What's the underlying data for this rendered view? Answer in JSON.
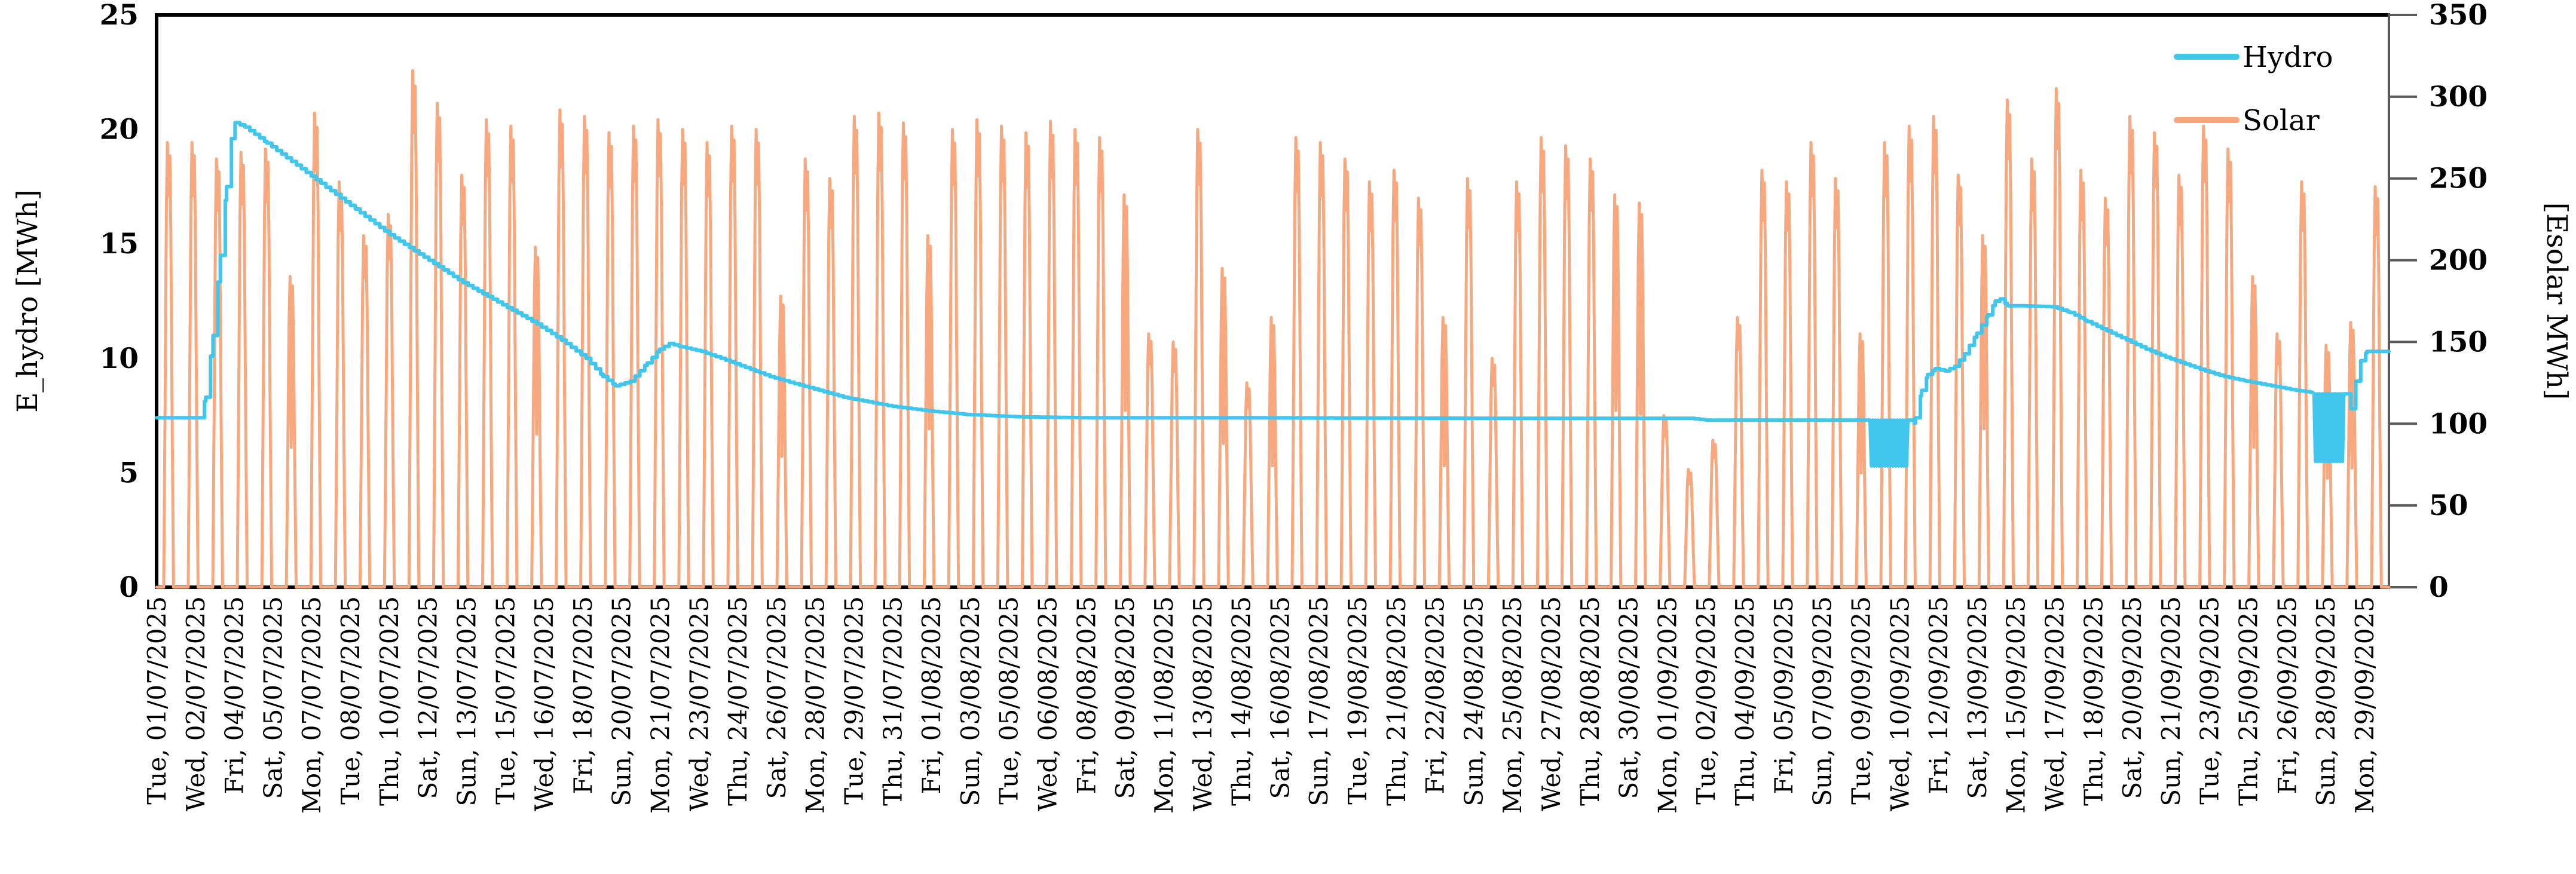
{
  "chart_data": {
    "type": "line",
    "title": "",
    "grid": false,
    "background_color": "#ffffff",
    "axis_color": "#000000",
    "right_axis_color": "#595959",
    "legend_position": "top-right-inside",
    "legend": [
      {
        "name": "Hydro",
        "color": "#41C6EE"
      },
      {
        "name": "Solar",
        "color": "#F8A87E"
      }
    ],
    "y_left": {
      "label": "E_hydro [MWh]",
      "min": 0,
      "max": 25,
      "ticks": [
        0,
        5,
        10,
        15,
        20,
        25
      ]
    },
    "y_right": {
      "label": "[Esolar MWh]",
      "min": 0,
      "max": 350,
      "ticks": [
        0,
        50,
        100,
        150,
        200,
        250,
        300,
        350
      ]
    },
    "x_axis": {
      "span_days": 91,
      "first_day": "Tue, 01/07/2025",
      "last_day": "Mon, 29/09/2025",
      "tick_labels": [
        "Tue, 01/07/2025",
        "Wed, 02/07/2025",
        "Fri, 04/07/2025",
        "Sat, 05/07/2025",
        "Mon, 07/07/2025",
        "Tue, 08/07/2025",
        "Thu, 10/07/2025",
        "Sat, 12/07/2025",
        "Sun, 13/07/2025",
        "Tue, 15/07/2025",
        "Wed, 16/07/2025",
        "Fri, 18/07/2025",
        "Sun, 20/07/2025",
        "Mon, 21/07/2025",
        "Wed, 23/07/2025",
        "Thu, 24/07/2025",
        "Sat, 26/07/2025",
        "Mon, 28/07/2025",
        "Tue, 29/07/2025",
        "Thu, 31/07/2025",
        "Fri, 01/08/2025",
        "Sun, 03/08/2025",
        "Tue, 05/08/2025",
        "Wed, 06/08/2025",
        "Fri, 08/08/2025",
        "Sat, 09/08/2025",
        "Mon, 11/08/2025",
        "Wed, 13/08/2025",
        "Thu, 14/08/2025",
        "Sat, 16/08/2025",
        "Sun, 17/08/2025",
        "Tue, 19/08/2025",
        "Thu, 21/08/2025",
        "Fri, 22/08/2025",
        "Sun, 24/08/2025",
        "Mon, 25/08/2025",
        "Wed, 27/08/2025",
        "Thu, 28/08/2025",
        "Sat, 30/08/2025",
        "Mon, 01/09/2025",
        "Tue, 02/09/2025",
        "Thu, 04/09/2025",
        "Fri, 05/09/2025",
        "Sun, 07/09/2025",
        "Tue, 09/09/2025",
        "Wed, 10/09/2025",
        "Fri, 12/09/2025",
        "Sat, 13/09/2025",
        "Mon, 15/09/2025",
        "Wed, 17/09/2025",
        "Thu, 18/09/2025",
        "Sat, 20/09/2025",
        "Sun, 21/09/2025",
        "Tue, 23/09/2025",
        "Thu, 25/09/2025",
        "Fri, 26/09/2025",
        "Sun, 28/09/2025",
        "Mon, 29/09/2025"
      ]
    },
    "series": [
      {
        "name": "Hydro",
        "axis": "left",
        "color": "#41C6EE",
        "style": "stepped-line",
        "segments": [
          {
            "type": "line",
            "points": [
              [
                0,
                7.4
              ],
              [
                1.75,
                7.4
              ],
              [
                2.0,
                8.3
              ],
              [
                2.3,
                11.0
              ],
              [
                2.6,
                14.5
              ],
              [
                2.85,
                17.5
              ],
              [
                3.05,
                19.6
              ],
              [
                3.2,
                20.3
              ],
              [
                3.6,
                20.1
              ],
              [
                4.5,
                19.4
              ],
              [
                5.5,
                18.6
              ],
              [
                6.5,
                17.8
              ],
              [
                7.5,
                17.0
              ],
              [
                8.5,
                16.2
              ],
              [
                9.5,
                15.4
              ],
              [
                10.5,
                14.7
              ],
              [
                11.5,
                14.0
              ],
              [
                12.5,
                13.3
              ],
              [
                13.5,
                12.7
              ],
              [
                14.5,
                12.1
              ],
              [
                15.5,
                11.5
              ],
              [
                16.5,
                10.8
              ],
              [
                17.5,
                10.0
              ],
              [
                18.2,
                9.2
              ],
              [
                18.7,
                8.8
              ],
              [
                19.3,
                9.0
              ],
              [
                20.0,
                9.8
              ],
              [
                20.5,
                10.4
              ],
              [
                20.9,
                10.65
              ],
              [
                21.4,
                10.5
              ],
              [
                22.2,
                10.3
              ],
              [
                23.0,
                10.0
              ],
              [
                24.0,
                9.6
              ],
              [
                25.0,
                9.2
              ],
              [
                26.0,
                8.9
              ],
              [
                27.0,
                8.6
              ],
              [
                28.0,
                8.3
              ],
              [
                29.0,
                8.1
              ],
              [
                30.0,
                7.9
              ],
              [
                31.5,
                7.7
              ],
              [
                33.0,
                7.55
              ],
              [
                35.0,
                7.45
              ],
              [
                38.0,
                7.4
              ],
              [
                45.0,
                7.4
              ],
              [
                55.0,
                7.38
              ],
              [
                62.5,
                7.38
              ],
              [
                63.2,
                7.3
              ],
              [
                69.8,
                7.3
              ]
            ]
          },
          {
            "type": "oscillation",
            "start": 69.85,
            "end": 71.4,
            "low": 5.3,
            "high": 7.3
          },
          {
            "type": "line",
            "points": [
              [
                71.45,
                6.2
              ],
              [
                71.7,
                7.4
              ],
              [
                71.95,
                8.6
              ],
              [
                72.2,
                9.3
              ],
              [
                72.5,
                9.55
              ],
              [
                72.9,
                9.45
              ],
              [
                73.3,
                9.65
              ],
              [
                73.7,
                10.2
              ],
              [
                74.2,
                11.1
              ],
              [
                74.65,
                11.9
              ],
              [
                74.95,
                12.5
              ],
              [
                75.15,
                12.6
              ],
              [
                75.45,
                12.3
              ],
              [
                76.0,
                12.3
              ],
              [
                77.3,
                12.25
              ],
              [
                78.0,
                12.0
              ],
              [
                78.7,
                11.6
              ],
              [
                79.5,
                11.2
              ],
              [
                80.3,
                10.8
              ],
              [
                81.1,
                10.4
              ],
              [
                81.9,
                10.05
              ],
              [
                82.7,
                9.75
              ],
              [
                83.5,
                9.45
              ],
              [
                84.3,
                9.2
              ],
              [
                85.2,
                9.0
              ],
              [
                86.2,
                8.8
              ],
              [
                87.2,
                8.6
              ],
              [
                87.9,
                8.5
              ]
            ]
          },
          {
            "type": "oscillation",
            "start": 87.95,
            "end": 89.2,
            "low": 5.5,
            "high": 8.45
          },
          {
            "type": "line",
            "points": [
              [
                89.25,
                6.6
              ],
              [
                89.45,
                7.8
              ],
              [
                89.65,
                9.0
              ],
              [
                89.85,
                9.9
              ],
              [
                90.1,
                10.3
              ],
              [
                91,
                10.3
              ]
            ]
          }
        ]
      },
      {
        "name": "Solar",
        "axis": "right",
        "color": "#F8A87E",
        "style": "daily-peaks",
        "daily_peaks": [
          272,
          272,
          262,
          266,
          268,
          190,
          290,
          248,
          215,
          228,
          316,
          296,
          252,
          286,
          282,
          208,
          292,
          288,
          278,
          282,
          286,
          280,
          272,
          282,
          280,
          178,
          262,
          250,
          288,
          290,
          284,
          215,
          280,
          286,
          282,
          278,
          285,
          280,
          275,
          240,
          155,
          150,
          280,
          195,
          125,
          165,
          275,
          272,
          262,
          248,
          255,
          238,
          165,
          250,
          140,
          248,
          275,
          270,
          262,
          240,
          235,
          105,
          72,
          90,
          165,
          255,
          248,
          272,
          250,
          155,
          272,
          282,
          288,
          252,
          215,
          298,
          262,
          305,
          255,
          238,
          288,
          278,
          252,
          282,
          268,
          190,
          155,
          248,
          148,
          162,
          245
        ],
        "deep_dip_days": [
          5,
          15,
          25,
          31,
          39,
          43,
          45,
          52,
          59,
          60,
          69,
          74,
          85,
          88,
          89
        ]
      }
    ]
  }
}
